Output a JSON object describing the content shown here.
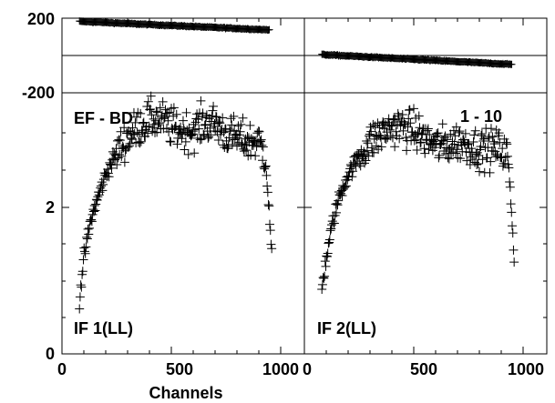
{
  "chart_data": {
    "type": "scatter",
    "xlabel": "Channels",
    "marker": "plus",
    "color": "#000000",
    "phase_axis": {
      "tick_labels": [
        "200",
        "-200"
      ],
      "range": [
        -200,
        200
      ]
    },
    "amp_axis": {
      "tick_labels": [
        "2",
        "0"
      ],
      "range": [
        0,
        4
      ]
    },
    "panels": [
      {
        "label": "IF 1(LL)",
        "baseline": "EF - BD",
        "xlim": [
          0,
          1000
        ],
        "x_tick_labels": [
          "0",
          "500",
          "1000"
        ],
        "phase_trend": [
          [
            80,
            183
          ],
          [
            950,
            137
          ]
        ],
        "amp_profile": [
          [
            80,
            0.75
          ],
          [
            100,
            1.3
          ],
          [
            130,
            1.8
          ],
          [
            160,
            2.1
          ],
          [
            200,
            2.45
          ],
          [
            250,
            2.75
          ],
          [
            300,
            2.95
          ],
          [
            350,
            3.1
          ],
          [
            400,
            3.2
          ],
          [
            450,
            3.2
          ],
          [
            500,
            3.1
          ],
          [
            550,
            3.05
          ],
          [
            600,
            3.05
          ],
          [
            650,
            3.15
          ],
          [
            700,
            3.15
          ],
          [
            750,
            3.0
          ],
          [
            800,
            2.95
          ],
          [
            850,
            2.9
          ],
          [
            900,
            2.9
          ],
          [
            930,
            2.7
          ],
          [
            950,
            1.8
          ],
          [
            960,
            1.35
          ]
        ]
      },
      {
        "label": "IF 2(LL)",
        "baseline": "1 - 10",
        "xlim": [
          0,
          1000
        ],
        "x_tick_labels": [
          "0",
          "500",
          "1000"
        ],
        "phase_trend": [
          [
            80,
            5
          ],
          [
            950,
            -48
          ]
        ],
        "amp_profile": [
          [
            80,
            0.9
          ],
          [
            100,
            1.3
          ],
          [
            130,
            1.8
          ],
          [
            160,
            2.15
          ],
          [
            200,
            2.45
          ],
          [
            250,
            2.7
          ],
          [
            300,
            2.9
          ],
          [
            350,
            3.0
          ],
          [
            400,
            3.1
          ],
          [
            450,
            3.1
          ],
          [
            500,
            3.05
          ],
          [
            550,
            2.95
          ],
          [
            600,
            2.85
          ],
          [
            650,
            2.85
          ],
          [
            700,
            2.9
          ],
          [
            750,
            2.85
          ],
          [
            800,
            2.8
          ],
          [
            850,
            2.8
          ],
          [
            900,
            2.8
          ],
          [
            930,
            2.7
          ],
          [
            950,
            1.8
          ],
          [
            960,
            1.25
          ]
        ]
      }
    ]
  }
}
